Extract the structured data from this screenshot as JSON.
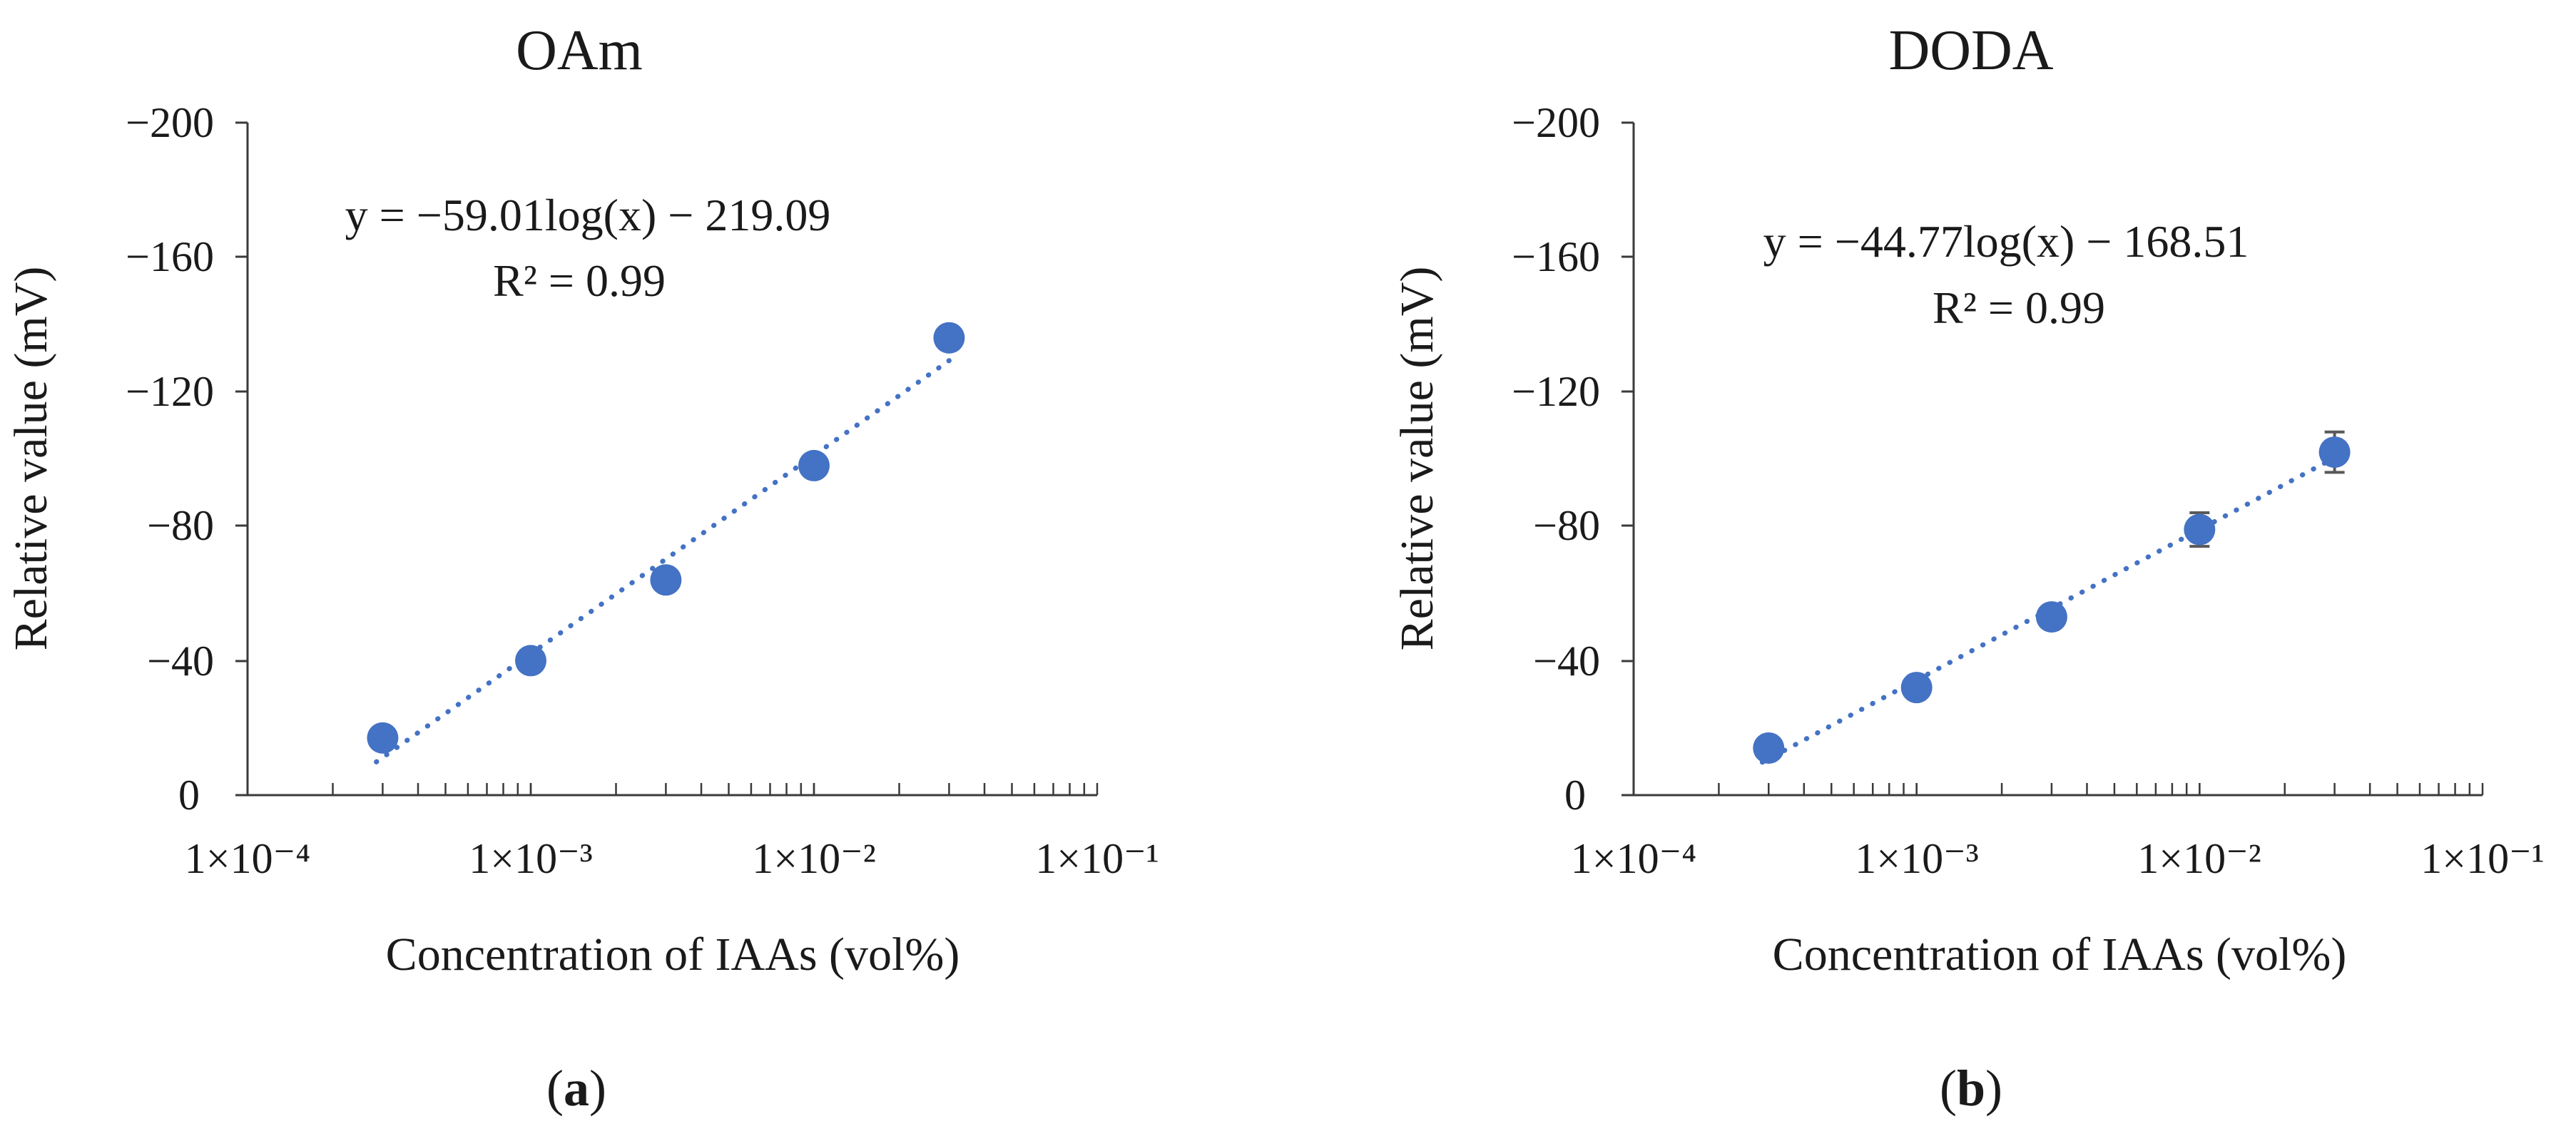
{
  "chart_data": [
    {
      "type": "scatter",
      "title": "OAm",
      "xlabel": "Concentration of IAAs (vol%)",
      "ylabel": "Relative value (mV)",
      "xscale": "log",
      "xlim": [
        0.0001,
        0.1
      ],
      "ylim": [
        0,
        -200
      ],
      "y_axis_inverted": true,
      "xticks": [
        "1×10⁻⁴",
        "1×10⁻³",
        "1×10⁻²",
        "1×10⁻¹"
      ],
      "yticks": [
        "0",
        "−40",
        "−80",
        "−120",
        "−160",
        "−200"
      ],
      "yticks_values": [
        0,
        -40,
        -80,
        -120,
        -160,
        -200
      ],
      "x": [
        0.0003,
        0.001,
        0.003,
        0.01,
        0.03
      ],
      "y": [
        -17,
        -40,
        -64,
        -98,
        -136
      ],
      "error": [
        0,
        0,
        0,
        0,
        0
      ],
      "trendline": {
        "slope": -59.01,
        "intercept": -219.09,
        "style": "dotted"
      },
      "annotation": {
        "equation": "y = −59.01log(x) − 219.09",
        "r2": "R² = 0.99"
      },
      "panel_label": {
        "open": "(",
        "letter": "a",
        "close": ")"
      }
    },
    {
      "type": "scatter",
      "title": "DODA",
      "xlabel": "Concentration of IAAs (vol%)",
      "ylabel": "Relative value (mV)",
      "xscale": "log",
      "xlim": [
        0.0001,
        0.1
      ],
      "ylim": [
        0,
        -200
      ],
      "y_axis_inverted": true,
      "xticks": [
        "1×10⁻⁴",
        "1×10⁻³",
        "1×10⁻²",
        "1×10⁻¹"
      ],
      "yticks": [
        "0",
        "−40",
        "−80",
        "−120",
        "−160",
        "−200"
      ],
      "yticks_values": [
        0,
        -40,
        -80,
        -120,
        -160,
        -200
      ],
      "x": [
        0.0003,
        0.001,
        0.003,
        0.01,
        0.03
      ],
      "y": [
        -14,
        -32,
        -53,
        -79,
        -102
      ],
      "error": [
        0,
        0,
        3,
        5,
        6
      ],
      "trendline": {
        "slope": -44.77,
        "intercept": -168.51,
        "style": "dotted"
      },
      "annotation": {
        "equation": "y = −44.77log(x) − 168.51",
        "r2": "R² = 0.99"
      },
      "panel_label": {
        "open": "(",
        "letter": "b",
        "close": ")"
      }
    }
  ],
  "colors": {
    "marker": "#4472C4",
    "trendline": "#4472C4",
    "error_bar": "#595959",
    "axis": "#3a3a3a",
    "text": "#1a1a1a"
  }
}
